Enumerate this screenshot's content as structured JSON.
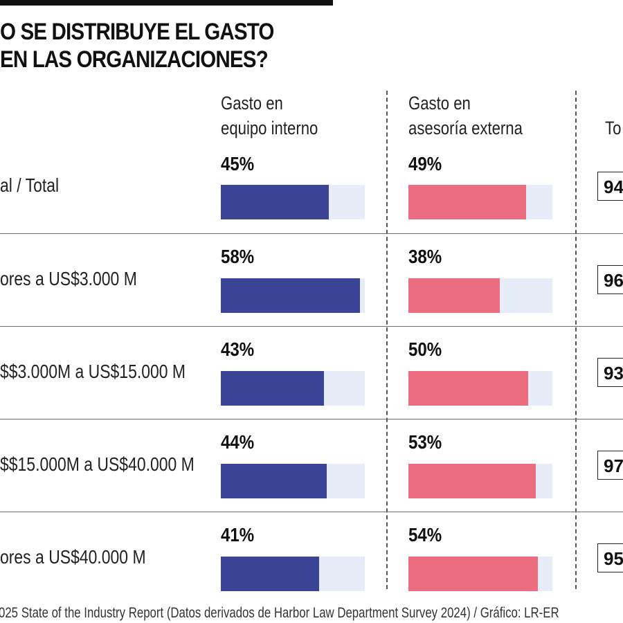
{
  "header": {
    "title_line1": "O SE DISTRIBUYE EL GASTO",
    "title_line2": " EN LAS ORGANIZACIONES?"
  },
  "columns": {
    "internal": [
      "Gasto en",
      "equipo interno"
    ],
    "external": [
      "Gasto en",
      "asesoría externa"
    ],
    "total": "To"
  },
  "colors": {
    "internal": "#3c4495",
    "external": "#ec6c80",
    "track": "#e6edf8"
  },
  "rows": [
    {
      "label": "al / Total",
      "internal_pct": "45%",
      "external_pct": "49%",
      "total": "94"
    },
    {
      "label": "ores a US$3.000 M",
      "internal_pct": "58%",
      "external_pct": "38%",
      "total": "96"
    },
    {
      "label": "$$3.000M a US$15.000 M",
      "internal_pct": "43%",
      "external_pct": "50%",
      "total": "93"
    },
    {
      "label": "$$15.000M a US$40.000 M",
      "internal_pct": "44%",
      "external_pct": "53%",
      "total": "97"
    },
    {
      "label": "ores a US$40.000 M",
      "internal_pct": "41%",
      "external_pct": "54%",
      "total": "95"
    }
  ],
  "chart_data": {
    "type": "bar",
    "title": "O SE DISTRIBUYE EL GASTO EN LAS ORGANIZACIONES?",
    "categories": [
      "al / Total",
      "ores a US$3.000 M",
      "$$3.000M a US$15.000 M",
      "$$15.000M a US$40.000 M",
      "ores a US$40.000 M"
    ],
    "series": [
      {
        "name": "Gasto en equipo interno",
        "values": [
          45,
          58,
          43,
          44,
          41
        ]
      },
      {
        "name": "Gasto en asesoría externa",
        "values": [
          49,
          38,
          50,
          53,
          54
        ]
      }
    ],
    "totals": [
      94,
      96,
      93,
      97,
      95
    ],
    "ylim": [
      0,
      60
    ],
    "xlabel": "",
    "ylabel": ""
  },
  "footer": {
    "source": "025 State of the Industry Report (Datos derivados de Harbor Law Department Survey 2024) / Gráfico: LR-ER"
  }
}
